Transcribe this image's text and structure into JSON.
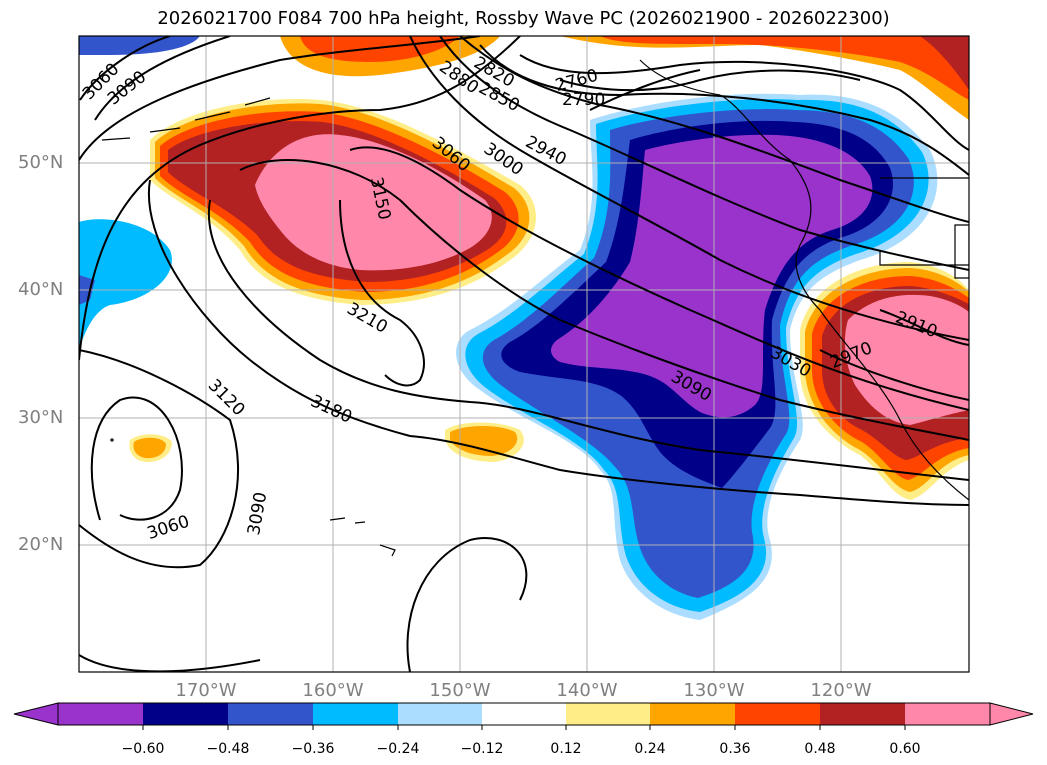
{
  "title": "2026021700 F084 700 hPa height, Rossby Wave PC (2026021900 - 2026022300)",
  "lat_labels": [
    "50°N",
    "40°N",
    "30°N",
    "20°N"
  ],
  "lon_labels": [
    "170°W",
    "160°W",
    "150°W",
    "140°W",
    "130°W",
    "120°W"
  ],
  "contour_labels": [
    "3060",
    "3090",
    "2880",
    "2820",
    "2850",
    "2760",
    "2790",
    "3060",
    "3000",
    "2940",
    "3150",
    "3210",
    "3090",
    "3030",
    "2910",
    "2970",
    "3120",
    "3180",
    "3060",
    "3090"
  ],
  "colorbar": {
    "ticks": [
      "−0.60",
      "−0.48",
      "−0.36",
      "−0.24",
      "−0.12",
      "0.12",
      "0.24",
      "0.36",
      "0.48",
      "0.60"
    ],
    "colors": [
      "#9933cc",
      "#000088",
      "#3355cc",
      "#00bbff",
      "#aaddff",
      "#ffffff",
      "#ffee88",
      "#ffa500",
      "#ff4400",
      "#b22222",
      "#ff88aa"
    ]
  }
}
